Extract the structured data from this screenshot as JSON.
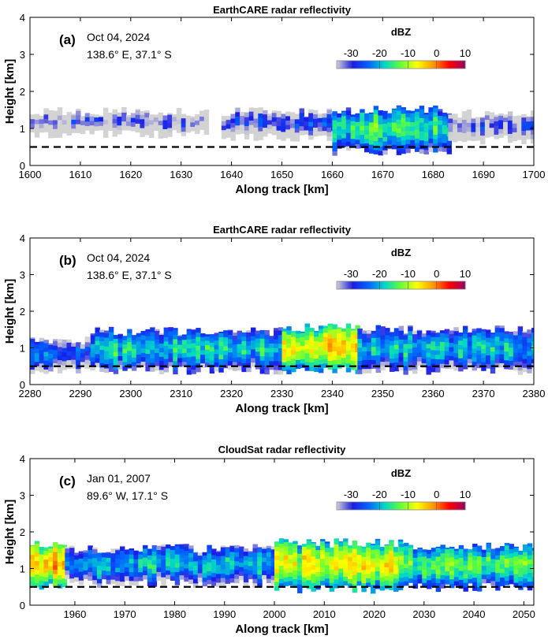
{
  "colors": {
    "colormap": [
      "#d3d3d3",
      "#1b1be6",
      "#0066ff",
      "#00d8c8",
      "#66ff33",
      "#ffff00",
      "#ff9900",
      "#ff0000",
      "#990066"
    ],
    "background": "#ffffff",
    "surface_line": "#000000"
  },
  "chart_data": [
    {
      "type": "heatmap",
      "panel_label": "(a)",
      "title": "EarthCARE radar reflectivity",
      "date": "Oct 04, 2024",
      "location": "138.6° E, 37.1° S",
      "xlabel": "Along track [km]",
      "ylabel": "Height [km]",
      "xlim": [
        1600,
        1700
      ],
      "ylim": [
        0,
        4
      ],
      "xticks": [
        1600,
        1610,
        1620,
        1630,
        1640,
        1650,
        1660,
        1670,
        1680,
        1690,
        1700
      ],
      "yticks": [
        0,
        1,
        2,
        3,
        4
      ],
      "colorbar": {
        "label": "dBZ",
        "ticks": [
          -30,
          -20,
          -10,
          0,
          10
        ],
        "range": [
          -35,
          10
        ]
      },
      "reference_height_km": 0.5,
      "cloud_segments": [
        {
          "x": [
            1600,
            1635
          ],
          "base_km": 0.85,
          "top_km": 1.45,
          "dbz": -36
        },
        {
          "x": [
            1638,
            1660
          ],
          "base_km": 0.75,
          "top_km": 1.45,
          "dbz": -32
        },
        {
          "x": [
            1660,
            1683
          ],
          "base_km": 0.4,
          "top_km": 1.5,
          "dbz": -20
        },
        {
          "x": [
            1683,
            1700
          ],
          "base_km": 0.7,
          "top_km": 1.4,
          "dbz": -34
        }
      ]
    },
    {
      "type": "heatmap",
      "panel_label": "(b)",
      "title": "EarthCARE radar reflectivity",
      "date": "Oct 04, 2024",
      "location": "138.6° E, 37.1° S",
      "xlabel": "Along track [km]",
      "ylabel": "Height [km]",
      "xlim": [
        2280,
        2380
      ],
      "ylim": [
        0,
        4
      ],
      "xticks": [
        2280,
        2290,
        2300,
        2310,
        2320,
        2330,
        2340,
        2350,
        2360,
        2370,
        2380
      ],
      "yticks": [
        0,
        1,
        2,
        3,
        4
      ],
      "colorbar": {
        "label": "dBZ",
        "ticks": [
          -30,
          -20,
          -10,
          0,
          10
        ],
        "range": [
          -35,
          10
        ]
      },
      "reference_height_km": 0.5,
      "cloud_segments": [
        {
          "x": [
            2280,
            2292
          ],
          "base_km": 0.4,
          "top_km": 1.2,
          "dbz": -28
        },
        {
          "x": [
            2292,
            2330
          ],
          "base_km": 0.4,
          "top_km": 1.45,
          "dbz": -22
        },
        {
          "x": [
            2330,
            2345
          ],
          "base_km": 0.4,
          "top_km": 1.55,
          "dbz": -10
        },
        {
          "x": [
            2345,
            2380
          ],
          "base_km": 0.4,
          "top_km": 1.5,
          "dbz": -24
        }
      ]
    },
    {
      "type": "heatmap",
      "panel_label": "(c)",
      "title": "CloudSat radar reflectivity",
      "date": "Jan 01, 2007",
      "location": "89.6° W, 17.1° S",
      "xlabel": "Along track [km]",
      "ylabel": "Height [km]",
      "xlim": [
        1951,
        2052
      ],
      "ylim": [
        0,
        4
      ],
      "xticks": [
        1960,
        1970,
        1980,
        1990,
        2000,
        2010,
        2020,
        2030,
        2040,
        2050
      ],
      "yticks": [
        0,
        1,
        2,
        3,
        4
      ],
      "colorbar": {
        "label": "dBZ",
        "ticks": [
          -30,
          -20,
          -10,
          0,
          10
        ],
        "range": [
          -35,
          10
        ]
      },
      "reference_height_km": 0.5,
      "cloud_segments": [
        {
          "x": [
            1951,
            1958
          ],
          "base_km": 0.55,
          "top_km": 1.65,
          "dbz": -8
        },
        {
          "x": [
            1958,
            2000
          ],
          "base_km": 0.6,
          "top_km": 1.55,
          "dbz": -24
        },
        {
          "x": [
            2000,
            2025
          ],
          "base_km": 0.45,
          "top_km": 1.7,
          "dbz": -12
        },
        {
          "x": [
            2025,
            2052
          ],
          "base_km": 0.5,
          "top_km": 1.6,
          "dbz": -18
        }
      ]
    }
  ]
}
